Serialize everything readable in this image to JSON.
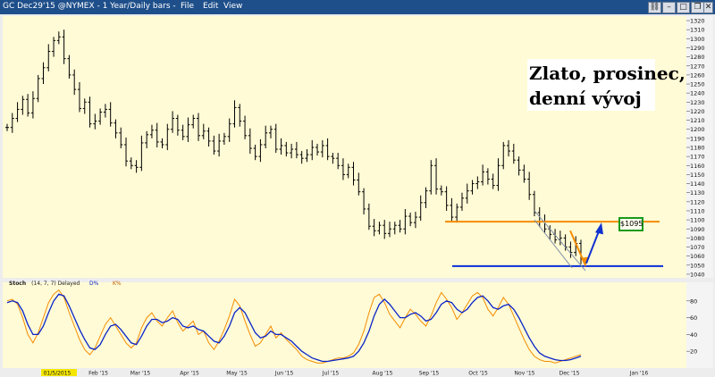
{
  "window": {
    "title": "GC Dec29'15 @NYMEX - 1 Year/Daily bars -",
    "menu": [
      "File",
      "Edit",
      "View"
    ]
  },
  "annotations": {
    "title_line1": "Zlato, prosinec,",
    "title_line2": "denní vývoj",
    "price_label": "$1095"
  },
  "indicator": {
    "label": "Stoch",
    "params": "(14, 7, 7) Delayed",
    "k_label": "D%",
    "d_label": "K%"
  },
  "colors": {
    "background": "#fffbd6",
    "bars": "#000000",
    "resistance": "#f58c00",
    "support": "#0a2fd8",
    "arrow": "#1030d0",
    "stoch_k": "#f58c00",
    "stoch_d": "#0a24c8",
    "price_box_border": "#1a9a1a"
  },
  "chart_data": [
    {
      "type": "ohlc",
      "y_axis": {
        "ticks": [
          1040,
          1050,
          1060,
          1070,
          1080,
          1090,
          1100,
          1110,
          1120,
          1130,
          1140,
          1150,
          1160,
          1170,
          1180,
          1190,
          1200,
          1210,
          1220,
          1230,
          1240,
          1250,
          1260,
          1270,
          1280,
          1290,
          1300,
          1310,
          1320
        ],
        "range": [
          1036,
          1325
        ],
        "position": "right"
      },
      "x_axis": {
        "labels": [
          "01/5/2015",
          "Feb '15",
          "Mar '15",
          "Apr '15",
          "May '15",
          "Jun '15",
          "Jul '15",
          "Aug '15",
          "Sep '15",
          "Oct '15",
          "Nov '15",
          "Dec '15",
          "Jan '16"
        ]
      },
      "closes": [
        1202,
        1212,
        1222,
        1233,
        1218,
        1234,
        1256,
        1268,
        1286,
        1298,
        1302,
        1278,
        1260,
        1244,
        1223,
        1230,
        1206,
        1209,
        1219,
        1222,
        1207,
        1196,
        1183,
        1165,
        1160,
        1158,
        1185,
        1194,
        1199,
        1186,
        1183,
        1200,
        1212,
        1199,
        1192,
        1205,
        1212,
        1193,
        1198,
        1187,
        1176,
        1187,
        1192,
        1206,
        1224,
        1209,
        1193,
        1179,
        1170,
        1183,
        1196,
        1200,
        1178,
        1182,
        1174,
        1178,
        1172,
        1168,
        1172,
        1180,
        1175,
        1182,
        1170,
        1168,
        1160,
        1150,
        1158,
        1144,
        1131,
        1112,
        1093,
        1088,
        1094,
        1085,
        1090,
        1094,
        1090,
        1104,
        1097,
        1103,
        1119,
        1132,
        1160,
        1134,
        1131,
        1116,
        1103,
        1114,
        1124,
        1132,
        1140,
        1142,
        1153,
        1145,
        1138,
        1160,
        1182,
        1176,
        1166,
        1155,
        1145,
        1128,
        1108,
        1098,
        1090,
        1084,
        1078,
        1080,
        1070,
        1064,
        1074,
        1057
      ],
      "lines": [
        {
          "kind": "resistance",
          "value": 1098
        },
        {
          "kind": "support",
          "value": 1049
        }
      ],
      "price_marker": 1095
    },
    {
      "type": "line",
      "name": "Stoch",
      "y_axis": {
        "ticks": [
          20,
          40,
          60,
          80
        ],
        "range": [
          0,
          100
        ]
      },
      "series": [
        {
          "name": "K%",
          "values": [
            80,
            82,
            76,
            60,
            40,
            30,
            42,
            60,
            78,
            88,
            93,
            84,
            66,
            50,
            34,
            22,
            16,
            24,
            38,
            52,
            60,
            50,
            40,
            30,
            24,
            30,
            48,
            60,
            66,
            56,
            50,
            60,
            68,
            54,
            44,
            50,
            56,
            40,
            44,
            30,
            22,
            32,
            46,
            62,
            82,
            74,
            56,
            40,
            26,
            30,
            40,
            50,
            36,
            42,
            34,
            28,
            22,
            14,
            10,
            8,
            6,
            6,
            8,
            10,
            12,
            12,
            14,
            18,
            28,
            44,
            66,
            84,
            88,
            78,
            64,
            56,
            48,
            60,
            70,
            64,
            56,
            50,
            62,
            78,
            90,
            82,
            72,
            58,
            66,
            76,
            86,
            90,
            84,
            70,
            62,
            72,
            84,
            76,
            62,
            48,
            34,
            22,
            14,
            10,
            8,
            8,
            6,
            8,
            10,
            12,
            14,
            16
          ]
        },
        {
          "name": "D%",
          "values": [
            78,
            80,
            78,
            68,
            52,
            40,
            40,
            50,
            66,
            80,
            88,
            86,
            74,
            60,
            46,
            34,
            24,
            22,
            28,
            40,
            50,
            52,
            46,
            38,
            30,
            28,
            38,
            50,
            58,
            58,
            54,
            56,
            60,
            58,
            50,
            48,
            50,
            46,
            44,
            38,
            32,
            30,
            38,
            50,
            66,
            72,
            66,
            54,
            42,
            36,
            38,
            44,
            40,
            40,
            36,
            32,
            26,
            20,
            16,
            12,
            10,
            8,
            8,
            9,
            10,
            11,
            12,
            14,
            20,
            30,
            44,
            62,
            76,
            82,
            76,
            68,
            60,
            60,
            64,
            66,
            62,
            56,
            58,
            66,
            76,
            80,
            78,
            70,
            66,
            70,
            78,
            84,
            86,
            80,
            72,
            70,
            74,
            76,
            70,
            60,
            48,
            36,
            26,
            18,
            14,
            12,
            10,
            9,
            9,
            10,
            12,
            14
          ]
        }
      ]
    }
  ]
}
